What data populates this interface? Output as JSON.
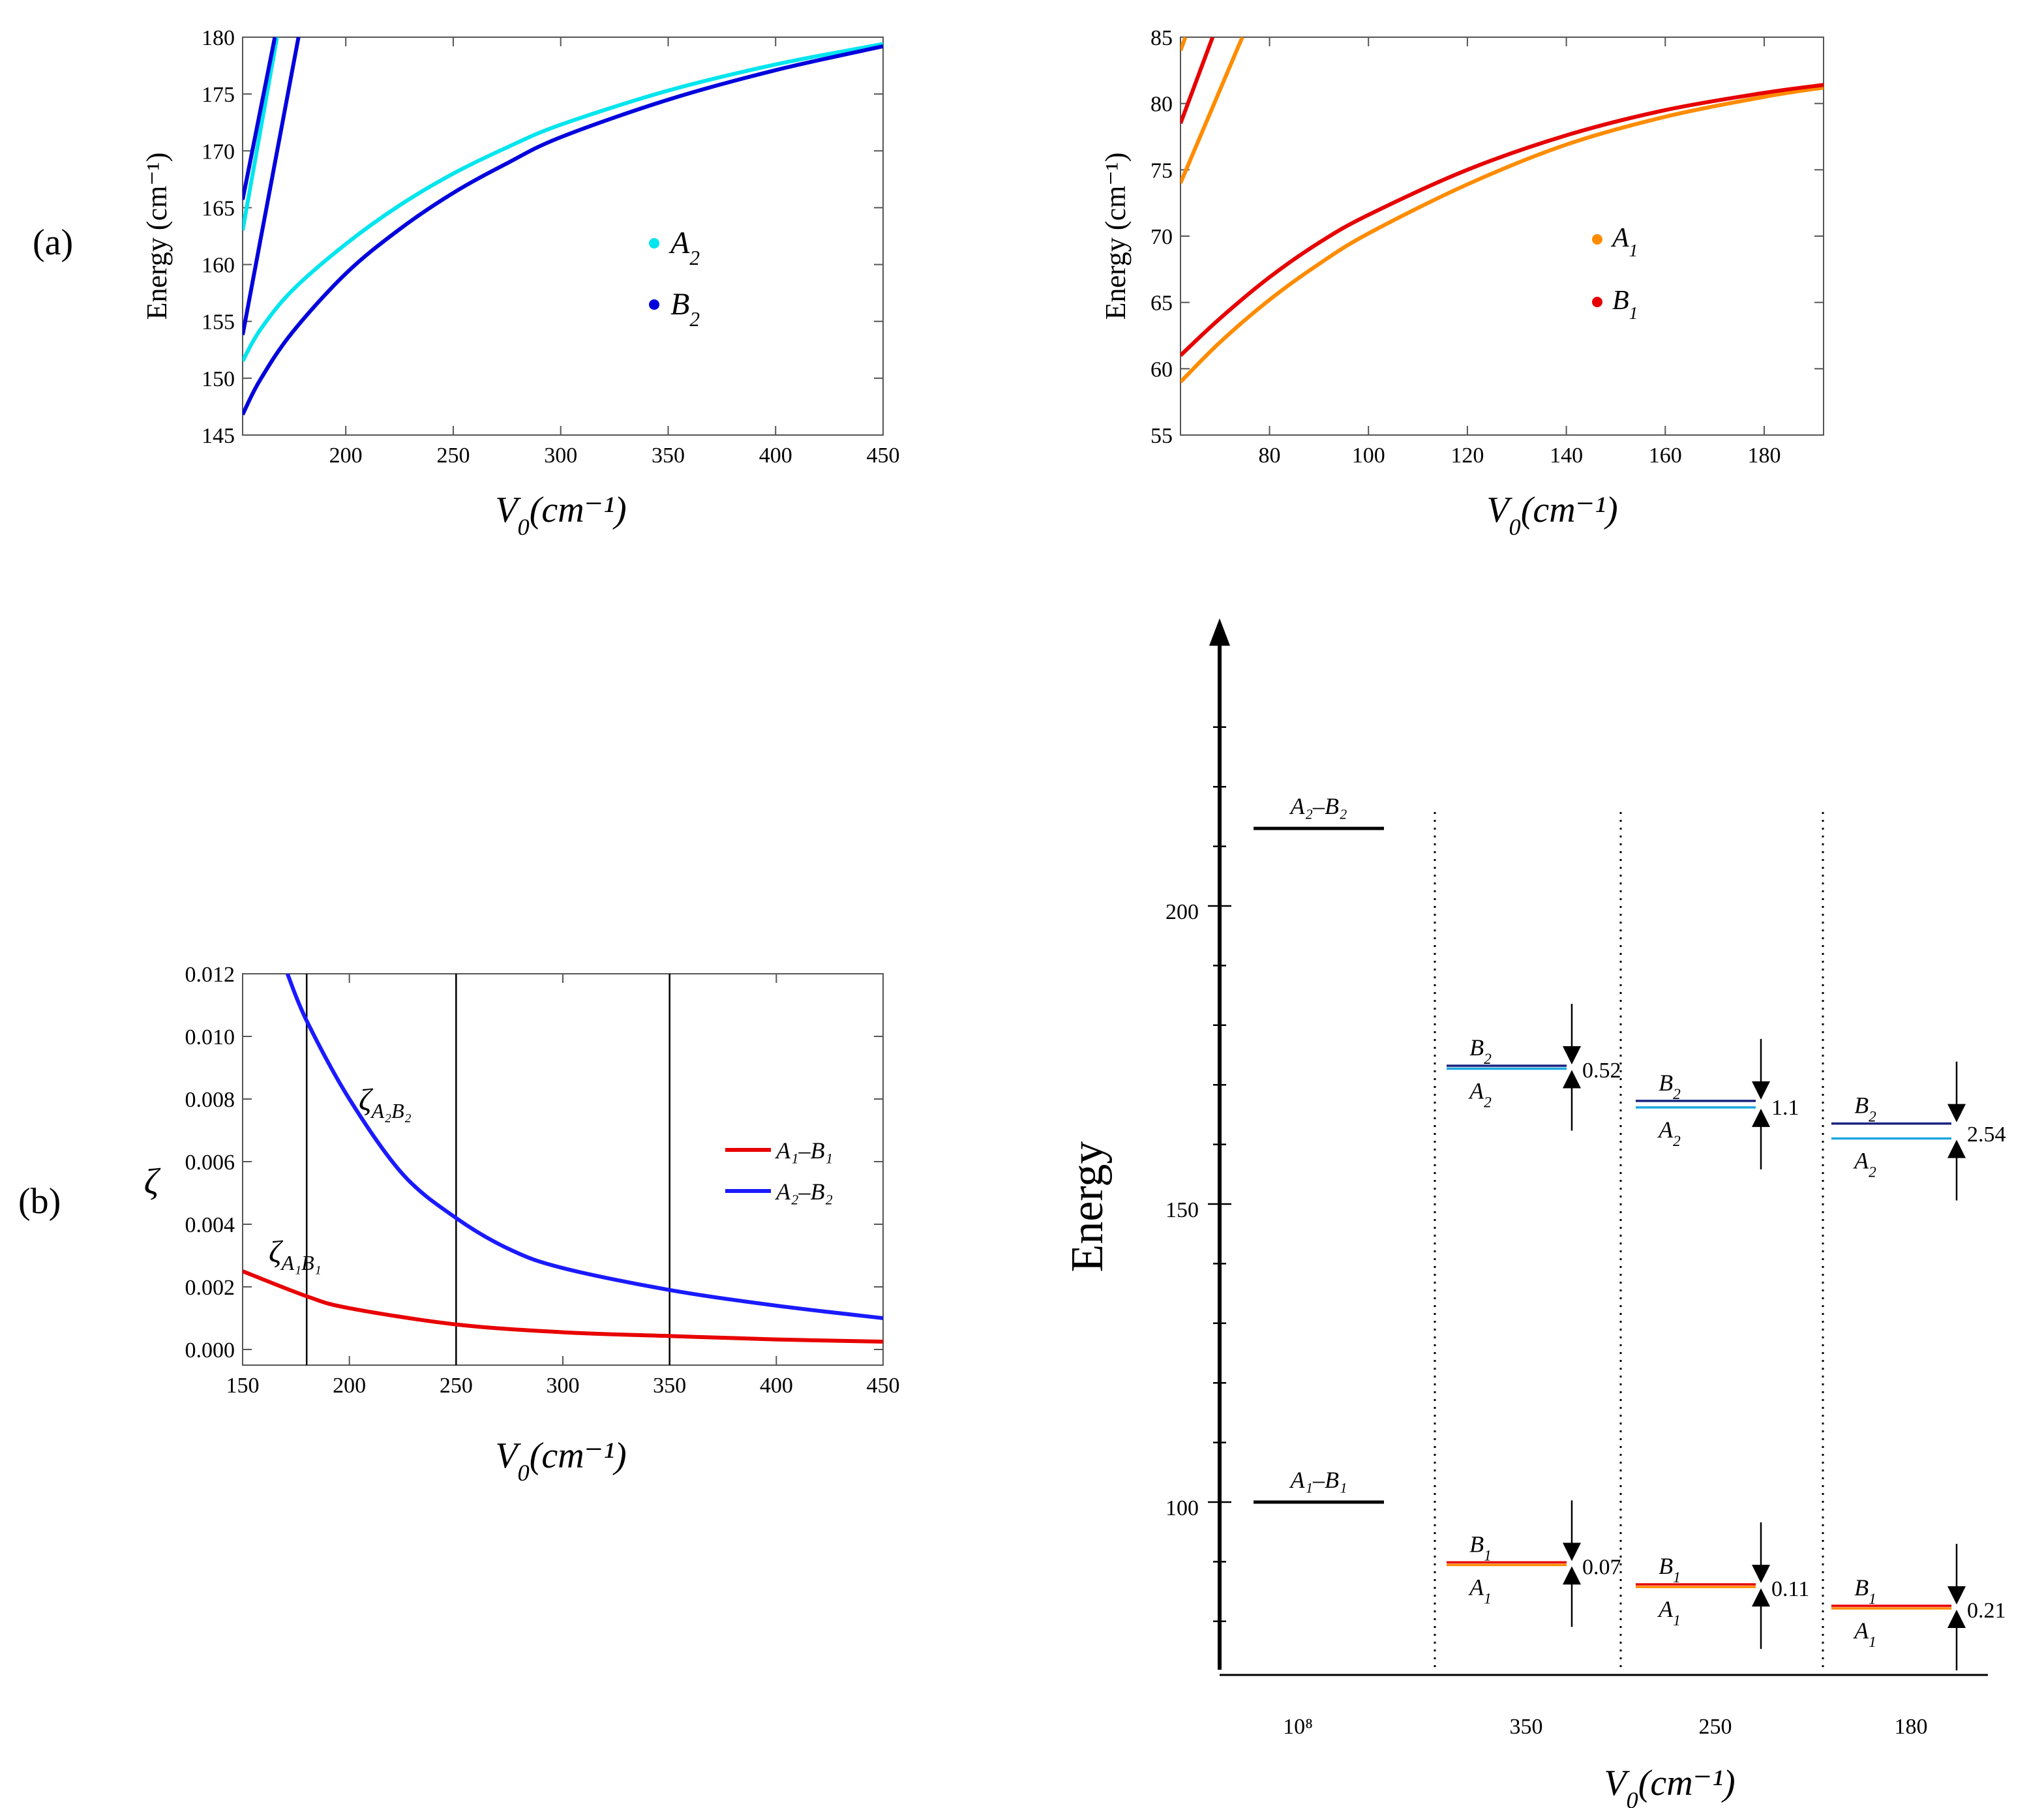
{
  "panel_labels": {
    "a": "(a)",
    "b": "(b)"
  },
  "colors": {
    "A2": "#00e5ee",
    "B2": "#0000dd",
    "A1": "#ff8c00",
    "B1": "#e60000",
    "zetaA2B2": "#1a1aff",
    "zetaA1B1": "#e80000",
    "levelA2": "#1ca8e0",
    "levelB2": "#1a237e",
    "levelA1": "#ff8c00",
    "levelB1": "#e60000"
  },
  "chart_data": [
    {
      "id": "a_left",
      "type": "line",
      "ylabel": "Energy (cm⁻¹)",
      "xlabel": "V₀(cm⁻¹)",
      "xlim": [
        152,
        450
      ],
      "ylim": [
        145,
        180
      ],
      "xticks": [
        200,
        250,
        300,
        350,
        400,
        450
      ],
      "yticks": [
        145,
        150,
        155,
        160,
        165,
        170,
        175,
        180
      ],
      "legend": {
        "position": "center-right",
        "entries": [
          "A2",
          "B2"
        ]
      },
      "series": [
        {
          "name": "A2",
          "x": [
            152,
            160,
            175,
            200,
            225,
            250,
            275,
            300,
            350,
            400,
            450
          ],
          "y": [
            151.5,
            154.2,
            157.7,
            161.8,
            165.2,
            168.0,
            170.3,
            172.3,
            175.3,
            177.6,
            179.4
          ]
        },
        {
          "name": "B2",
          "x": [
            152,
            160,
            175,
            200,
            225,
            250,
            275,
            300,
            350,
            400,
            450
          ],
          "y": [
            146.8,
            149.8,
            154.0,
            159.2,
            163.1,
            166.3,
            168.9,
            171.2,
            174.5,
            177.1,
            179.2
          ]
        },
        {
          "name": "A2",
          "x": [
            152,
            168
          ],
          "y": [
            163.0,
            180.0
          ]
        },
        {
          "name": "B2",
          "x": [
            152,
            167
          ],
          "y": [
            165.7,
            180.0
          ]
        },
        {
          "name": "B2",
          "x": [
            152,
            178
          ],
          "y": [
            153.8,
            180.0
          ]
        }
      ]
    },
    {
      "id": "a_right",
      "type": "line",
      "ylabel": "Energy (cm⁻¹)",
      "xlabel": "V₀(cm⁻¹)",
      "xlim": [
        62,
        192
      ],
      "ylim": [
        55,
        85
      ],
      "xticks": [
        80,
        100,
        120,
        140,
        160,
        180
      ],
      "yticks": [
        55,
        60,
        65,
        70,
        75,
        80,
        85
      ],
      "legend": {
        "position": "center-right",
        "entries": [
          "A1",
          "B1"
        ]
      },
      "series": [
        {
          "name": "A1",
          "x": [
            62,
            70,
            80,
            90,
            100,
            120,
            140,
            160,
            180,
            192
          ],
          "y": [
            59.0,
            62.0,
            65.2,
            67.9,
            70.2,
            73.9,
            76.9,
            79.0,
            80.5,
            81.2
          ]
        },
        {
          "name": "B1",
          "x": [
            62,
            70,
            80,
            90,
            100,
            120,
            140,
            160,
            180,
            192
          ],
          "y": [
            61.0,
            63.8,
            66.9,
            69.5,
            71.6,
            75.0,
            77.6,
            79.5,
            80.8,
            81.4
          ]
        },
        {
          "name": "A1",
          "x": [
            62,
            74.5
          ],
          "y": [
            74.0,
            85.0
          ]
        },
        {
          "name": "A1",
          "x": [
            62,
            63
          ],
          "y": [
            84.0,
            85.0
          ]
        },
        {
          "name": "B1",
          "x": [
            62,
            68.5
          ],
          "y": [
            78.5,
            85.0
          ]
        }
      ]
    },
    {
      "id": "b_left",
      "type": "line",
      "ylabel": "ζ",
      "xlabel": "V₀(cm⁻¹)",
      "xlim": [
        150,
        450
      ],
      "ylim": [
        -0.0005,
        0.012
      ],
      "xticks": [
        150,
        200,
        250,
        300,
        350,
        400,
        450
      ],
      "yticks": [
        "0.000",
        "0.002",
        "0.004",
        "0.006",
        "0.008",
        "0.010",
        "0.012"
      ],
      "vlines": [
        180,
        250,
        350
      ],
      "legend": {
        "position": "right",
        "entries": [
          "A1–B1",
          "A2–B2"
        ]
      },
      "annotations": [
        "ζA2B2",
        "ζA1B1"
      ],
      "series": [
        {
          "name": "A1–B1",
          "x": [
            150,
            180,
            200,
            250,
            300,
            350,
            400,
            450
          ],
          "y": [
            0.0025,
            0.0017,
            0.00132,
            0.0008,
            0.00055,
            0.00043,
            0.00032,
            0.00025
          ]
        },
        {
          "name": "A2–B2",
          "x": [
            171,
            180,
            200,
            225,
            250,
            275,
            300,
            350,
            400,
            450
          ],
          "y": [
            0.012,
            0.0105,
            0.008,
            0.0056,
            0.0042,
            0.0032,
            0.0026,
            0.0019,
            0.0014,
            0.001
          ]
        }
      ]
    },
    {
      "id": "b_right",
      "type": "diagram",
      "ylabel": "Energy",
      "xlabel": "V₀(cm⁻¹)",
      "ylim": [
        72,
        250
      ],
      "yticks": [
        100,
        150,
        200
      ],
      "columns": [
        "10⁸",
        "350",
        "250",
        "180"
      ],
      "degenerate_levels": [
        {
          "label": "A₂–B₂",
          "energy": 213
        },
        {
          "label": "A₁–B₁",
          "energy": 100
        }
      ],
      "splittings": [
        {
          "column": "350",
          "upper": "B₂",
          "lower": "A₂",
          "energy_upper": 173.2,
          "energy_lower": 172.7,
          "gap": "0.52"
        },
        {
          "column": "250",
          "upper": "B₂",
          "lower": "A₂",
          "energy_upper": 167.3,
          "energy_lower": 166.2,
          "gap": "1.1"
        },
        {
          "column": "180",
          "upper": "B₂",
          "lower": "A₂",
          "energy_upper": 163.5,
          "energy_lower": 161.0,
          "gap": "2.54"
        },
        {
          "column": "350",
          "upper": "B₁",
          "lower": "A₁",
          "energy_upper": 89.9,
          "energy_lower": 89.8,
          "gap": "0.07"
        },
        {
          "column": "250",
          "upper": "B₁",
          "lower": "A₁",
          "energy_upper": 86.2,
          "energy_lower": 86.0,
          "gap": "0.11"
        },
        {
          "column": "180",
          "upper": "B₁",
          "lower": "A₁",
          "energy_upper": 82.6,
          "energy_lower": 82.3,
          "gap": "0.21"
        }
      ]
    }
  ]
}
